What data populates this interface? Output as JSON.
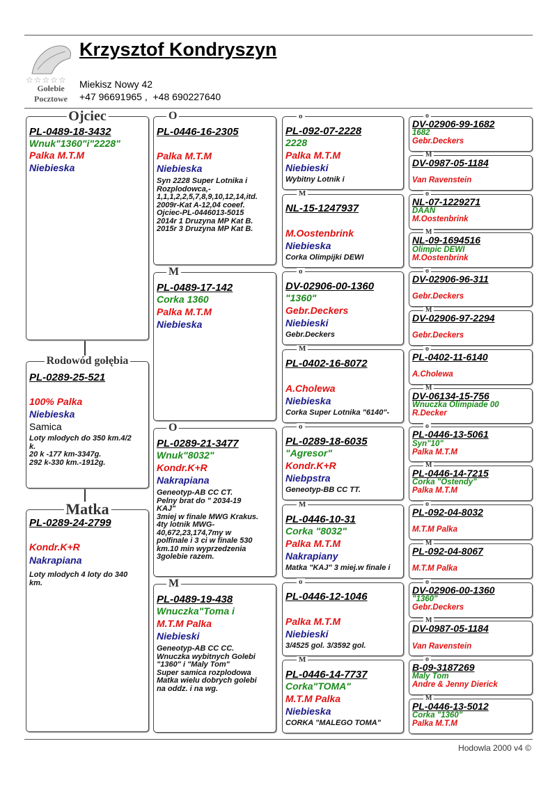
{
  "header": {
    "name": "Krzysztof Kondryszyn",
    "address": "Miekisz Nowy 42",
    "phones": "+47 96691965 ,  +48 690227640",
    "logo": [
      "Gołebie",
      "Pocztowe"
    ]
  },
  "columns": [
    [
      {
        "label": "Ojciec",
        "ring": "PL-0489-18-3432",
        "name": "Wnuk\"1360\"i\"2228\"",
        "owner": "Palka M.T.M",
        "colour": "Niebieska"
      },
      {
        "label": "Rodowód gołębia",
        "ring": "PL-0289-25-521",
        "owner": "100% Palka",
        "colour": "Niebieska",
        "sex": "Samica",
        "notes": [
          "Loty mlodych do 350 km.4/2",
          "k.",
          "20 k -177 km-3347g.",
          "292 k-330 km.-1912g."
        ]
      },
      {
        "label": "Matka",
        "ring": "PL-0289-24-2799",
        "owner": "Kondr.K+R",
        "colour": "Nakrapiana",
        "notes": [
          "Loty mlodych 4 loty do 340",
          "km."
        ]
      }
    ],
    [
      {
        "label": "O",
        "ring": "PL-0446-16-2305",
        "owner": "Palka M.T.M",
        "colour": "Niebieska",
        "notes": [
          "Syn 2228 Super Lotnika i",
          "Rozplodowca,-",
          "1,1,1,2,2,5,7,8,9,10,12,14,itd.",
          "2009r-Kat A-12,04 coeef.",
          "Ojciec-PL-0446013-5015",
          "2014r 1 Druzyna MP Kat B.",
          "2015r 3 Druzyna MP Kat B."
        ]
      },
      {
        "label": "M",
        "ring": "PL-0489-17-142",
        "name": "Corka 1360",
        "owner": "Palka M.T.M",
        "colour": "Niebieska"
      },
      {
        "label": "O",
        "ring": "PL-0289-21-3477",
        "name": "Wnuk\"8032\"",
        "owner": "Kondr.K+R",
        "colour": "Nakrapiana",
        "notes": [
          "Geneotyp-AB CC CT.",
          "Pelny brat do \" 2034-19",
          "KAJ\"",
          "3miej w finale MWG Krakus.",
          "4ty lotnik MWG-",
          "40,672,23,174,7my w",
          "polfinale i 3 ci w finale 530",
          "km.10 min wyprzedzenia",
          "3golebie razem."
        ]
      },
      {
        "label": "M",
        "ring": "PL-0489-19-438",
        "name": "Wnuczka\"Toma i",
        "owner": "M.T.M Palka",
        "colour": "Niebieski",
        "notes": [
          "Geneotyp-AB CC CC.",
          "Wnuczka wybitnych Golebi",
          "\"1360\" i \"Maly Tom\"",
          "Super samica rozplodowa",
          "Matka wielu dobrych golebi",
          "na oddz. i na wg."
        ]
      }
    ],
    [
      {
        "label": "o",
        "ring": "PL-092-07-2228",
        "name": "2228",
        "owner": "Palka M.T.M",
        "colour": "Niebieski",
        "notes": [
          "Wybitny Lotnik i"
        ]
      },
      {
        "label": "M",
        "ring": "NL-15-1247937",
        "owner": "M.Oostenbrink",
        "colour": "Niebieska",
        "notes": [
          "Corka Olimpijki DEWI"
        ]
      },
      {
        "label": "o",
        "ring": "DV-02906-00-1360",
        "name": "\"1360\"",
        "owner": "Gebr.Deckers",
        "colour": "Niebieski",
        "notes": [
          "Gebr.Deckers"
        ]
      },
      {
        "label": "M",
        "ring": "PL-0402-16-8072",
        "owner": "A.Cholewa",
        "colour": "Niebieska",
        "notes": [
          "Corka Super Lotnika \"6140\"-"
        ]
      },
      {
        "label": "o",
        "ring": "PL-0289-18-6035",
        "name": "\"Agresor\"",
        "owner": "Kondr.K+R",
        "colour": "Niebpstra",
        "notes": [
          "Geneotyp-BB CC TT."
        ]
      },
      {
        "label": "M",
        "ring": "PL-0446-10-31",
        "name": "Corka \"8032\"",
        "owner": "Palka M.T.M",
        "colour": "Nakrapiany",
        "notes": [
          "Matka \"KAJ\" 3 miej.w finale i"
        ]
      },
      {
        "label": "o",
        "ring": "PL-0446-12-1046",
        "owner": "Palka M.T.M",
        "colour": "Niebieski",
        "notes": [
          "3/4525 gol. 3/3592 gol."
        ]
      },
      {
        "label": "M",
        "ring": "PL-0446-14-7737",
        "name": "Corka\"TOMA\"",
        "owner": "M.T.M Palka",
        "colour": "Niebieska",
        "notes": [
          "CORKA \"MALEGO TOMA\""
        ]
      }
    ],
    [
      {
        "label": "o",
        "ring": "DV-02906-99-1682",
        "name": "1682",
        "owner": "Gebr.Deckers"
      },
      {
        "label": "M",
        "ring": "DV-0987-05-1184",
        "owner": "Van Ravenstein"
      },
      {
        "label": "o",
        "ring": "NL-07-1229271",
        "name": "DAAN",
        "owner": "M.Oostenbrink"
      },
      {
        "label": "M",
        "ring": "NL-09-1694516",
        "name": "Olimpic DEWI",
        "owner": "M.Oostenbrink"
      },
      {
        "label": "o",
        "ring": "DV-02906-96-311",
        "owner": "Gebr.Deckers"
      },
      {
        "label": "M",
        "ring": "DV-02906-97-2294",
        "owner": "Gebr.Deckers"
      },
      {
        "label": "o",
        "ring": "PL-0402-11-6140",
        "owner": "A.Cholewa"
      },
      {
        "label": "M",
        "ring": "DV-06134-15-756",
        "name": "Wnuczka Olimpiade 00",
        "owner": "R.Decker"
      },
      {
        "label": "o",
        "ring": "PL-0446-13-5061",
        "name": "Syn\"10\"",
        "owner": "Palka M.T.M"
      },
      {
        "label": "M",
        "ring": "PL-0446-14-7215",
        "name": "Corka \"Ostendy\"",
        "owner": "Palka M.T.M"
      },
      {
        "label": "o",
        "ring": "PL-092-04-8032",
        "owner": "M.T.M Palka"
      },
      {
        "label": "M",
        "ring": "PL-092-04-8067",
        "owner": "M.T.M Palka"
      },
      {
        "label": "o",
        "ring": "DV-02906-00-1360",
        "name": "\"1360\"",
        "owner": "Gebr.Deckers"
      },
      {
        "label": "M",
        "ring": "DV-0987-05-1184",
        "owner": "Van Ravenstein"
      },
      {
        "label": "o",
        "ring": "B-09-3187269",
        "name": "Maly Tom",
        "owner": "Andre & Jenny Dierick"
      },
      {
        "label": "M",
        "ring": "PL-0446-13-5012",
        "name": "Corka \"1360\"",
        "owner": "Palka M.T.M"
      }
    ]
  ],
  "footer": "Hodowla 2000 v4 ©"
}
